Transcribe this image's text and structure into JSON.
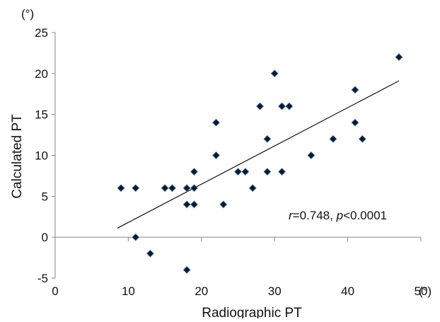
{
  "chart_data": {
    "type": "scatter",
    "title": "",
    "xlabel": "Radiographic PT",
    "ylabel": "Calculated PT",
    "x_unit": "(°)",
    "y_unit": "(°)",
    "xlim": [
      0,
      50
    ],
    "ylim": [
      -5,
      25
    ],
    "x_ticks": [
      0,
      10,
      20,
      30,
      40,
      50
    ],
    "y_ticks": [
      -5,
      0,
      5,
      10,
      15,
      20,
      25
    ],
    "grid": false,
    "legend": "none",
    "marker_color": "#0a1a33",
    "points": [
      {
        "x": 9,
        "y": 6
      },
      {
        "x": 11,
        "y": 6
      },
      {
        "x": 11,
        "y": 0
      },
      {
        "x": 13,
        "y": -2
      },
      {
        "x": 15,
        "y": 6
      },
      {
        "x": 16,
        "y": 6
      },
      {
        "x": 18,
        "y": 6
      },
      {
        "x": 18,
        "y": 4
      },
      {
        "x": 18,
        "y": -4
      },
      {
        "x": 19,
        "y": 8
      },
      {
        "x": 19,
        "y": 6
      },
      {
        "x": 19,
        "y": 4
      },
      {
        "x": 22,
        "y": 14
      },
      {
        "x": 22,
        "y": 10
      },
      {
        "x": 23,
        "y": 4
      },
      {
        "x": 25,
        "y": 8
      },
      {
        "x": 26,
        "y": 8
      },
      {
        "x": 27,
        "y": 6
      },
      {
        "x": 28,
        "y": 16
      },
      {
        "x": 29,
        "y": 12
      },
      {
        "x": 29,
        "y": 8
      },
      {
        "x": 30,
        "y": 20
      },
      {
        "x": 31,
        "y": 16
      },
      {
        "x": 31,
        "y": 8
      },
      {
        "x": 32,
        "y": 16
      },
      {
        "x": 35,
        "y": 10
      },
      {
        "x": 38,
        "y": 12
      },
      {
        "x": 41,
        "y": 18
      },
      {
        "x": 41,
        "y": 14
      },
      {
        "x": 42,
        "y": 12
      },
      {
        "x": 47,
        "y": 22
      }
    ],
    "trendline": {
      "x1": 8.5,
      "y1": 1.1,
      "x2": 47,
      "y2": 19.1
    },
    "annotation": {
      "r_symbol": "r",
      "r_text": "=0.748, ",
      "p_symbol": "p",
      "p_text": "<0.0001"
    }
  }
}
